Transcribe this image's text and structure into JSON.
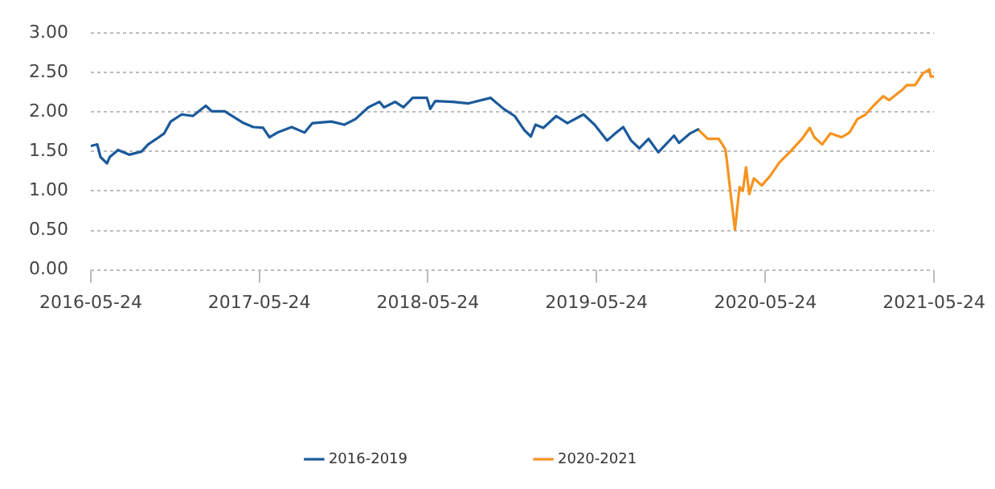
{
  "chart_data": {
    "type": "line",
    "xlim": [
      "2016-05-24",
      "2021-05-24"
    ],
    "xticks": [
      "2016-05-24",
      "2017-05-24",
      "2018-05-24",
      "2019-05-24",
      "2020-05-24",
      "2021-05-24"
    ],
    "ylim": [
      0,
      3
    ],
    "yticks": [
      {
        "value": 0,
        "label": "0.00"
      },
      {
        "value": 0.5,
        "label": "0.50"
      },
      {
        "value": 1,
        "label": "1.00"
      },
      {
        "value": 1.5,
        "label": "1.50"
      },
      {
        "value": 2,
        "label": "2.00"
      },
      {
        "value": 2.5,
        "label": "2.50"
      },
      {
        "value": 3,
        "label": "3.00"
      }
    ],
    "grid": "y",
    "legend": "bottom",
    "marker": "none",
    "line_style": "solid",
    "series": [
      {
        "name": "2016-2019",
        "color": "#1b5a9a",
        "x": [
          "2016-05-24",
          "2016-06-07",
          "2016-06-14",
          "2016-06-28",
          "2016-07-04",
          "2016-07-22",
          "2016-08-15",
          "2016-09-11",
          "2016-09-25",
          "2016-10-13",
          "2016-10-30",
          "2016-11-13",
          "2016-12-07",
          "2016-12-31",
          "2017-01-28",
          "2017-02-10",
          "2017-03-10",
          "2017-04-20",
          "2017-05-11",
          "2017-06-01",
          "2017-06-15",
          "2017-07-02",
          "2017-08-02",
          "2017-08-30",
          "2017-09-16",
          "2017-10-27",
          "2017-11-24",
          "2017-12-18",
          "2018-01-15",
          "2018-02-08",
          "2018-02-18",
          "2018-03-14",
          "2018-04-01",
          "2018-04-21",
          "2018-05-22",
          "2018-05-29",
          "2018-06-09",
          "2018-07-17",
          "2018-08-20",
          "2018-10-07",
          "2018-11-04",
          "2018-11-28",
          "2018-12-19",
          "2019-01-02",
          "2019-01-12",
          "2019-01-29",
          "2019-02-26",
          "2019-03-22",
          "2019-04-26",
          "2019-05-20",
          "2019-06-16",
          "2019-07-04",
          "2019-07-21",
          "2019-08-07",
          "2019-08-25",
          "2019-09-14",
          "2019-10-05",
          "2019-11-08",
          "2019-11-19",
          "2019-12-13",
          "2019-12-30"
        ],
        "values": [
          1.57,
          1.59,
          1.43,
          1.35,
          1.43,
          1.52,
          1.46,
          1.5,
          1.59,
          1.66,
          1.73,
          1.88,
          1.97,
          1.95,
          2.08,
          2.01,
          2.01,
          1.86,
          1.81,
          1.8,
          1.68,
          1.74,
          1.81,
          1.74,
          1.86,
          1.88,
          1.84,
          1.91,
          2.06,
          2.13,
          2.06,
          2.13,
          2.06,
          2.18,
          2.18,
          2.04,
          2.14,
          2.13,
          2.11,
          2.18,
          2.04,
          1.95,
          1.77,
          1.69,
          1.84,
          1.8,
          1.95,
          1.86,
          1.97,
          1.84,
          1.64,
          1.73,
          1.81,
          1.64,
          1.54,
          1.66,
          1.49,
          1.7,
          1.61,
          1.73,
          1.78
        ]
      },
      {
        "name": "2020-2021",
        "color": "#f7931e",
        "x": [
          "2019-12-30",
          "2020-01-20",
          "2020-02-13",
          "2020-02-27",
          "2020-03-01",
          "2020-03-08",
          "2020-03-19",
          "2020-03-29",
          "2020-04-05",
          "2020-04-12",
          "2020-04-19",
          "2020-04-29",
          "2020-05-16",
          "2020-06-03",
          "2020-06-23",
          "2020-07-17",
          "2020-08-11",
          "2020-08-28",
          "2020-09-07",
          "2020-09-24",
          "2020-10-12",
          "2020-11-05",
          "2020-11-22",
          "2020-12-09",
          "2020-12-27",
          "2021-01-13",
          "2021-02-03",
          "2021-02-16",
          "2021-03-16",
          "2021-03-26",
          "2021-04-13",
          "2021-04-30",
          "2021-05-14",
          "2021-05-17",
          "2021-05-24"
        ],
        "values": [
          1.78,
          1.66,
          1.66,
          1.53,
          1.41,
          1.05,
          0.51,
          1.05,
          1.0,
          1.3,
          0.96,
          1.16,
          1.07,
          1.19,
          1.36,
          1.5,
          1.66,
          1.8,
          1.68,
          1.59,
          1.73,
          1.68,
          1.74,
          1.91,
          1.97,
          2.08,
          2.2,
          2.15,
          2.28,
          2.34,
          2.34,
          2.49,
          2.54,
          2.45,
          2.45
        ]
      }
    ]
  }
}
